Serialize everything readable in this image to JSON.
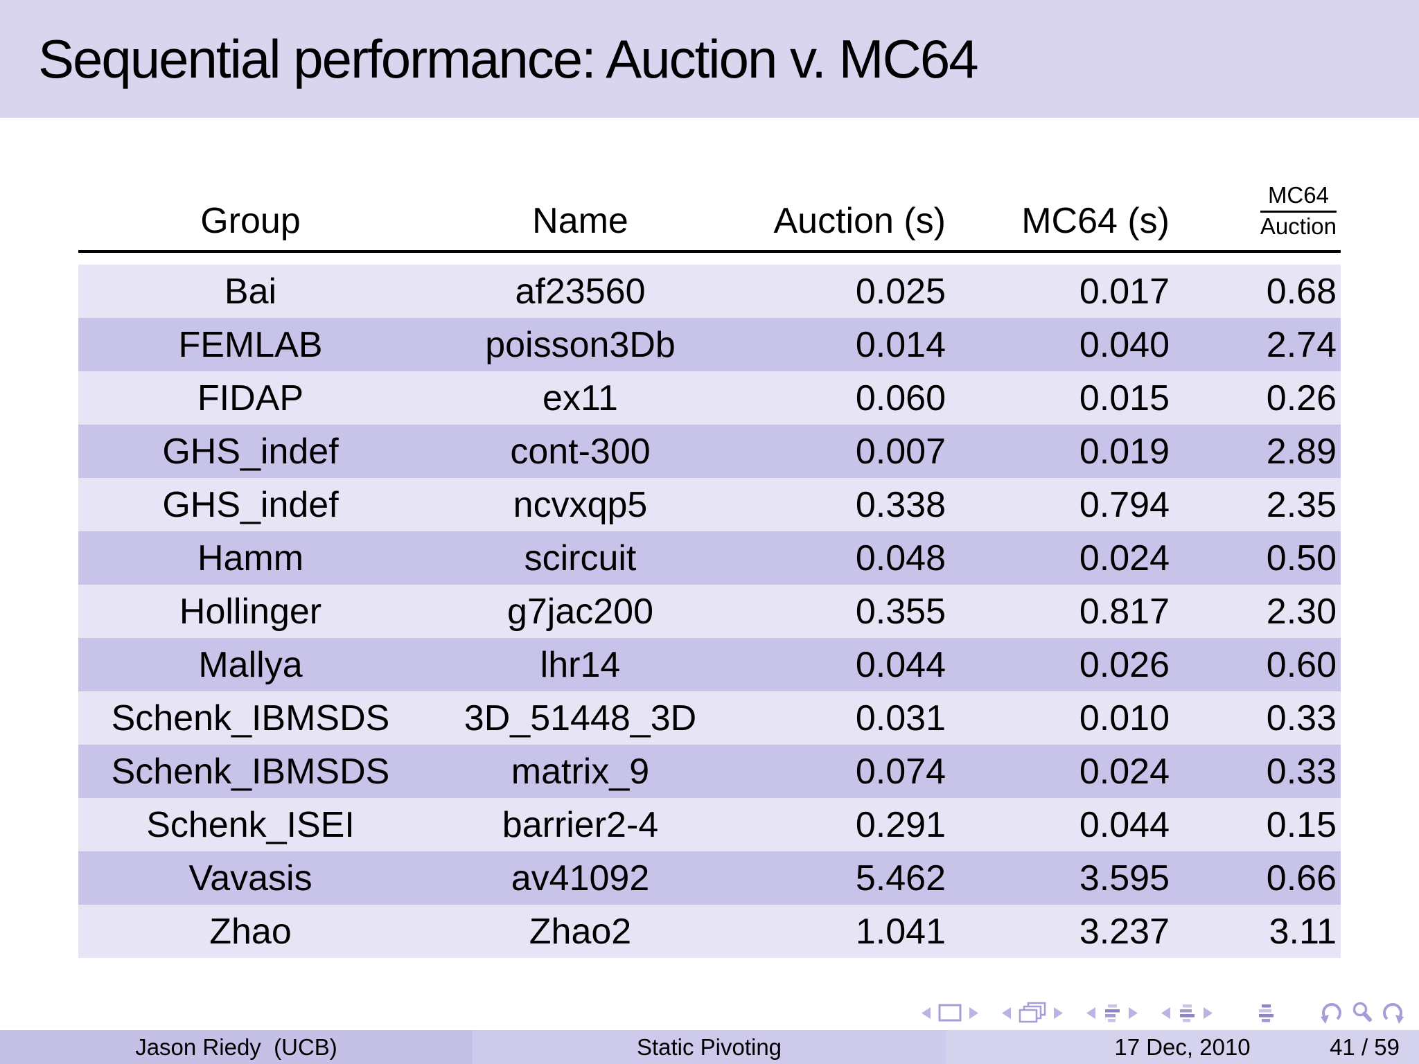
{
  "title": "Sequential performance: Auction v. MC64",
  "table": {
    "headers": {
      "group": "Group",
      "name": "Name",
      "auction": "Auction (s)",
      "mc64": "MC64 (s)",
      "ratio_numerator": "MC64",
      "ratio_denominator": "Auction"
    },
    "rows": [
      {
        "group": "Bai",
        "name": "af23560",
        "auction": "0.025",
        "mc64": "0.017",
        "ratio": "0.68"
      },
      {
        "group": "FEMLAB",
        "name": "poisson3Db",
        "auction": "0.014",
        "mc64": "0.040",
        "ratio": "2.74"
      },
      {
        "group": "FIDAP",
        "name": "ex11",
        "auction": "0.060",
        "mc64": "0.015",
        "ratio": "0.26"
      },
      {
        "group": "GHS_indef",
        "name": "cont-300",
        "auction": "0.007",
        "mc64": "0.019",
        "ratio": "2.89"
      },
      {
        "group": "GHS_indef",
        "name": "ncvxqp5",
        "auction": "0.338",
        "mc64": "0.794",
        "ratio": "2.35"
      },
      {
        "group": "Hamm",
        "name": "scircuit",
        "auction": "0.048",
        "mc64": "0.024",
        "ratio": "0.50"
      },
      {
        "group": "Hollinger",
        "name": "g7jac200",
        "auction": "0.355",
        "mc64": "0.817",
        "ratio": "2.30"
      },
      {
        "group": "Mallya",
        "name": "lhr14",
        "auction": "0.044",
        "mc64": "0.026",
        "ratio": "0.60"
      },
      {
        "group": "Schenk_IBMSDS",
        "name": "3D_51448_3D",
        "auction": "0.031",
        "mc64": "0.010",
        "ratio": "0.33"
      },
      {
        "group": "Schenk_IBMSDS",
        "name": "matrix_9",
        "auction": "0.074",
        "mc64": "0.024",
        "ratio": "0.33"
      },
      {
        "group": "Schenk_ISEI",
        "name": "barrier2-4",
        "auction": "0.291",
        "mc64": "0.044",
        "ratio": "0.15"
      },
      {
        "group": "Vavasis",
        "name": "av41092",
        "auction": "5.462",
        "mc64": "3.595",
        "ratio": "0.66"
      },
      {
        "group": "Zhao",
        "name": "Zhao2",
        "auction": "1.041",
        "mc64": "3.237",
        "ratio": "3.11"
      }
    ]
  },
  "footer": {
    "author": "Jason Riedy  (UCB)",
    "doc_title": "Static Pivoting",
    "date": "17 Dec, 2010",
    "page": "41 / 59"
  },
  "nav_icons": [
    "prev-slide-icon",
    "slide-icon",
    "next-slide-icon",
    "prev-frame-icon",
    "frames-icon",
    "next-frame-icon",
    "prev-section-icon",
    "section-list-icon",
    "next-section-icon",
    "prev-subsection-icon",
    "subsection-list-icon",
    "next-subsection-icon",
    "appendix-list-icon",
    "back-icon",
    "find-icon",
    "forward-icon"
  ],
  "colors": {
    "title_bar": "#d9d5ef",
    "row_light": "#e7e4f6",
    "row_dark": "#c8c4e9",
    "footer_author": "#c5c1e6",
    "footer_title": "#cecaeb",
    "footer_date": "#d5d2ee",
    "nav_tri": "#b9b4e2",
    "nav_line_light": "#c9c5e8",
    "nav_line_med": "#a29bd3",
    "nav_line_dark": "#8d85c5",
    "nav_stroke": "#a59ed6",
    "text": "#000000"
  }
}
